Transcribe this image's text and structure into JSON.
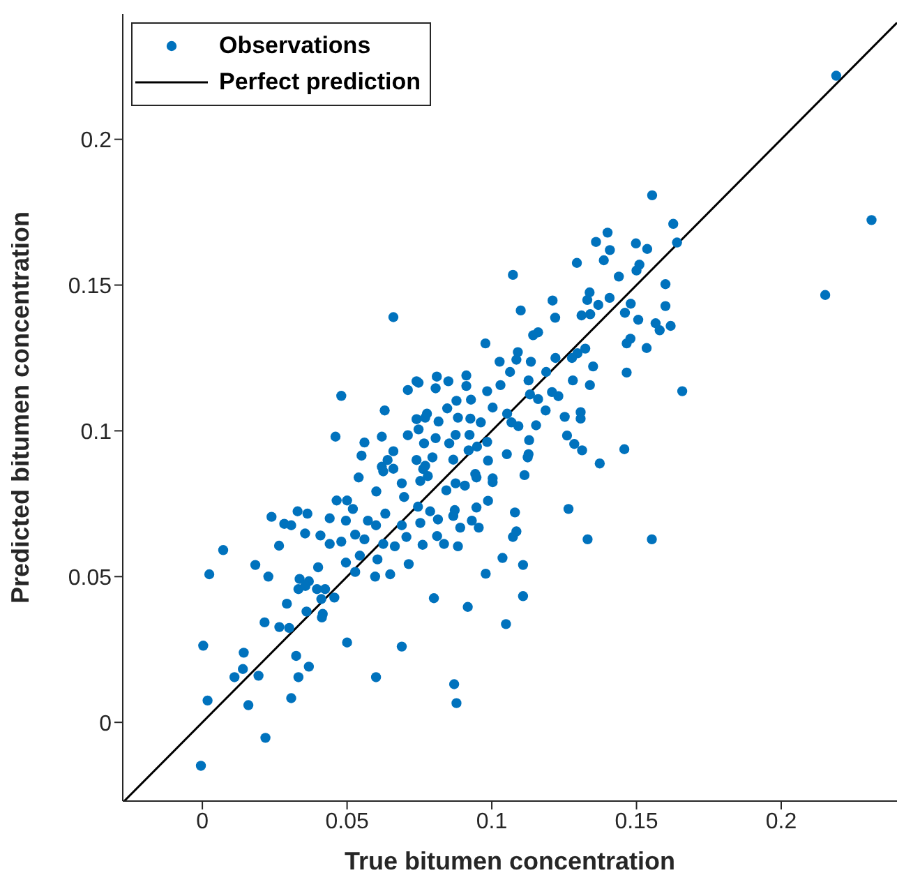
{
  "chart_data": {
    "type": "scatter",
    "xlabel": "True bitumen concentration",
    "ylabel": "Predicted bitumen concentration",
    "xlim": [
      -0.0275,
      0.24
    ],
    "ylim": [
      -0.027,
      0.243
    ],
    "xticks": [
      0,
      0.05,
      0.1,
      0.15,
      0.2
    ],
    "yticks": [
      0,
      0.05,
      0.1,
      0.15,
      0.2
    ],
    "grid": false,
    "legend": "top left",
    "series": [
      {
        "name": "Observations",
        "marker": "circle",
        "color": "#0072bd",
        "x": [
          0.066,
          0.074,
          0.071,
          0.048,
          0.063,
          0.074,
          0.077,
          0.046,
          0.056,
          0.062,
          0.071,
          0.055,
          0.066,
          0.064,
          0.074,
          0.062,
          0.066,
          0.077,
          0.054,
          0.1554,
          0.1627,
          0.14,
          0.136,
          0.1498,
          0.164,
          0.1537,
          0.1408,
          0.1387,
          0.1294,
          0.151,
          0.15,
          0.1073,
          0.1439,
          0.16,
          0.1338,
          0.121,
          0.133,
          0.1407,
          0.1368,
          0.148,
          0.16,
          0.146,
          0.11,
          0.1219,
          0.131,
          0.134,
          0.1506,
          0.1566,
          0.1618,
          0.158,
          0.116,
          0.1143,
          0.0978,
          0.1479,
          0.1466,
          0.1535,
          0.1323,
          0.1296,
          0.1277,
          0.109,
          0.1085,
          0.1027,
          0.1135,
          0.122,
          0.135,
          0.1063,
          0.1466,
          0.0747,
          0.081,
          0.085,
          0.0912,
          0.0806,
          0.0912,
          0.103,
          0.1127,
          0.1188,
          0.0984,
          0.128,
          0.1339,
          0.1132,
          0.0878,
          0.0928,
          0.116,
          0.1208,
          0.123,
          0.1658,
          0.0846,
          0.1003,
          0.1186,
          0.0776,
          0.0816,
          0.0883,
          0.0926,
          0.0962,
          0.1053,
          0.1252,
          0.1307,
          0.1307,
          0.1068,
          0.1092,
          0.1153,
          0.0747,
          0.0806,
          0.0875,
          0.0923,
          0.0984,
          0.0949,
          0.1129,
          0.126,
          0.1285,
          0.0766,
          0.0853,
          0.092,
          0.1052,
          0.1127,
          0.1312,
          0.1458,
          0.0795,
          0.0867,
          0.0987,
          0.1124,
          0.1373,
          0.0763,
          0.0943,
          0.1003,
          0.1113,
          0.0625,
          0.0689,
          0.0753,
          0.0601,
          0.0464,
          0.05,
          0.052,
          0.0697,
          0.0745,
          0.0496,
          0.0239,
          0.0283,
          0.0329,
          0.0363,
          0.0307,
          0.0355,
          0.0408,
          0.044,
          0.0572,
          0.06,
          0.0632,
          0.0689,
          0.0753,
          0.0705,
          0.0265,
          0.044,
          0.048,
          0.0528,
          0.056,
          0.0625,
          0.0665,
          0.0761,
          0.0072,
          0.0183,
          0.0228,
          0.0024,
          0.04,
          0.0713,
          0.0605,
          0.0544,
          0.0496,
          0.0528,
          0.0597,
          0.0649,
          0.0336,
          0.0368,
          0.0332,
          0.0356,
          0.0396,
          0.0424,
          0.0456,
          0.0411,
          0.0416,
          0.0413,
          0.0292,
          0.0215,
          0.0266,
          0.03,
          0.036,
          0.05,
          0.0689,
          0.0003,
          0.0143,
          0.0324,
          0.014,
          0.0111,
          0.0194,
          0.0332,
          0.0368,
          0.06,
          0.0018,
          0.0159,
          0.0307,
          0.0218,
          -0.0005,
          0.1003,
          0.0947,
          0.0907,
          0.0875,
          0.0843,
          0.0779,
          0.0987,
          0.0947,
          0.0872,
          0.0787,
          0.0814,
          0.0867,
          0.0931,
          0.0955,
          0.0891,
          0.108,
          0.1265,
          0.0811,
          0.0835,
          0.0883,
          0.1073,
          0.1085,
          0.1331,
          0.1553,
          0.1037,
          0.1108,
          0.0979,
          0.08,
          0.0917,
          0.1108,
          0.1049,
          0.087,
          0.0878,
          0.219,
          0.2312,
          0.2152
        ],
        "values": [
          0.139,
          0.117,
          0.114,
          0.112,
          0.107,
          0.104,
          0.1045,
          0.098,
          0.096,
          0.098,
          0.0985,
          0.0915,
          0.093,
          0.09,
          0.09,
          0.0877,
          0.087,
          0.088,
          0.084,
          0.1808,
          0.171,
          0.168,
          0.1648,
          0.1643,
          0.1646,
          0.1624,
          0.162,
          0.1585,
          0.1576,
          0.157,
          0.155,
          0.1535,
          0.1529,
          0.1503,
          0.1475,
          0.1447,
          0.1449,
          0.1456,
          0.1432,
          0.1436,
          0.1428,
          0.1405,
          0.1413,
          0.1388,
          0.1396,
          0.14,
          0.1381,
          0.1369,
          0.136,
          0.1345,
          0.1338,
          0.1328,
          0.13,
          0.1316,
          0.13,
          0.1284,
          0.1282,
          0.1266,
          0.125,
          0.127,
          0.1244,
          0.1237,
          0.1237,
          0.125,
          0.1221,
          0.1202,
          0.12,
          0.1165,
          0.1186,
          0.117,
          0.119,
          0.1146,
          0.1154,
          0.1157,
          0.1173,
          0.1202,
          0.1136,
          0.1173,
          0.1157,
          0.1125,
          0.1103,
          0.1107,
          0.1109,
          0.1133,
          0.1119,
          0.1136,
          0.1077,
          0.108,
          0.107,
          0.1059,
          0.1032,
          0.1045,
          0.1042,
          0.1029,
          0.1059,
          0.1048,
          0.1064,
          0.1042,
          0.1029,
          0.1016,
          0.1019,
          0.1005,
          0.0975,
          0.0986,
          0.0986,
          0.0962,
          0.0946,
          0.0968,
          0.0984,
          0.0955,
          0.0957,
          0.0957,
          0.0933,
          0.092,
          0.092,
          0.0933,
          0.0937,
          0.0909,
          0.0901,
          0.0898,
          0.0909,
          0.0888,
          0.0869,
          0.0852,
          0.0837,
          0.0848,
          0.0861,
          0.082,
          0.0828,
          0.0792,
          0.0761,
          0.0761,
          0.0732,
          0.0773,
          0.074,
          0.0692,
          0.0705,
          0.0681,
          0.0724,
          0.0716,
          0.0676,
          0.0648,
          0.0641,
          0.07,
          0.0692,
          0.0676,
          0.0716,
          0.0676,
          0.0684,
          0.0636,
          0.0606,
          0.0612,
          0.062,
          0.0644,
          0.0628,
          0.0612,
          0.0604,
          0.0609,
          0.0591,
          0.054,
          0.05,
          0.0508,
          0.0532,
          0.0543,
          0.0559,
          0.0572,
          0.0548,
          0.0516,
          0.05,
          0.0508,
          0.0492,
          0.0484,
          0.0457,
          0.0468,
          0.0457,
          0.0457,
          0.0428,
          0.0423,
          0.0372,
          0.036,
          0.0407,
          0.0343,
          0.0327,
          0.0324,
          0.038,
          0.0274,
          0.026,
          0.0263,
          0.0239,
          0.0228,
          0.0183,
          0.0155,
          0.016,
          0.0155,
          0.0191,
          0.0155,
          0.0075,
          0.0059,
          0.0083,
          -0.0053,
          -0.0149,
          0.0824,
          0.084,
          0.0812,
          0.082,
          0.0796,
          0.0845,
          0.076,
          0.0737,
          0.0728,
          0.0724,
          0.0696,
          0.0708,
          0.0692,
          0.0668,
          0.0668,
          0.072,
          0.0732,
          0.0639,
          0.0612,
          0.0604,
          0.0636,
          0.0655,
          0.0628,
          0.0628,
          0.0564,
          0.054,
          0.051,
          0.0426,
          0.0396,
          0.0433,
          0.0337,
          0.0131,
          0.0066,
          0.2218,
          0.1723,
          0.1466
        ]
      },
      {
        "name": "Perfect prediction",
        "type": "line",
        "color": "#000000",
        "x": [
          -0.027,
          0.24
        ],
        "values": [
          -0.027,
          0.24
        ]
      }
    ]
  }
}
